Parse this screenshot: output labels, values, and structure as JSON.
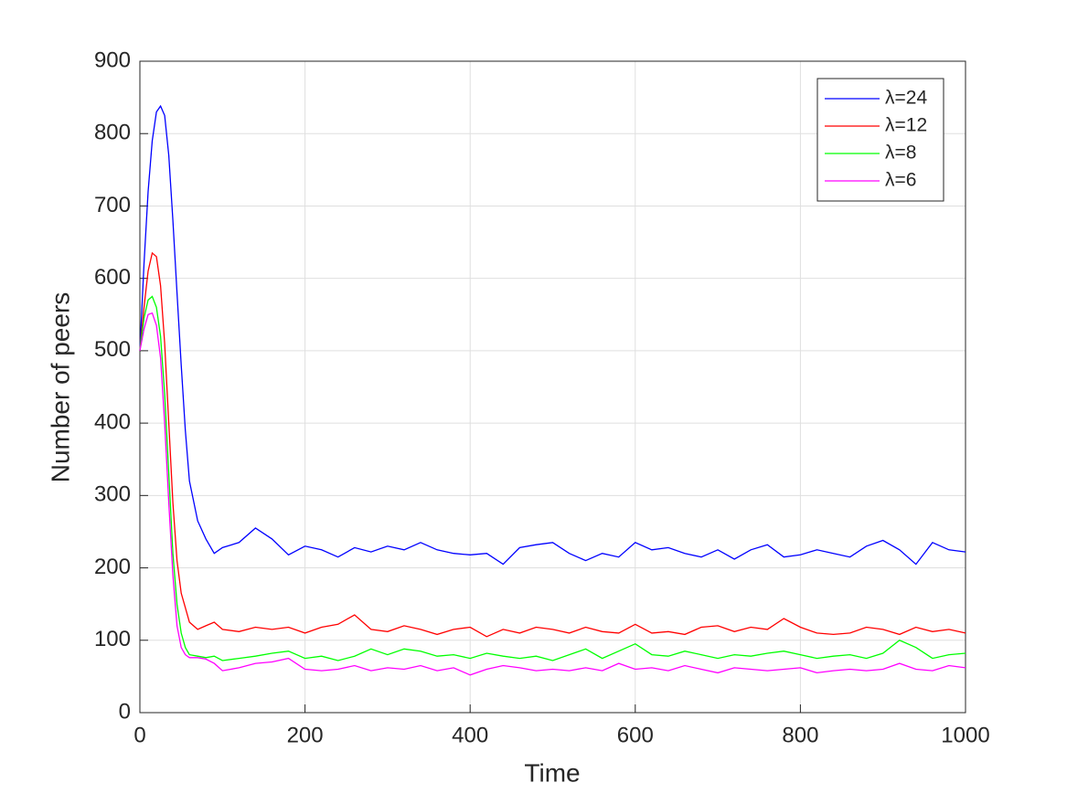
{
  "chart_data": {
    "type": "line",
    "xlabel": "Time",
    "ylabel": "Number of peers",
    "x": [
      0,
      5,
      10,
      15,
      20,
      25,
      30,
      35,
      40,
      45,
      50,
      55,
      60,
      70,
      80,
      90,
      100,
      120,
      140,
      160,
      180,
      200,
      220,
      240,
      260,
      280,
      300,
      320,
      340,
      360,
      380,
      400,
      420,
      440,
      460,
      480,
      500,
      520,
      540,
      560,
      580,
      600,
      620,
      640,
      660,
      680,
      700,
      720,
      740,
      760,
      780,
      800,
      820,
      840,
      860,
      880,
      900,
      920,
      940,
      960,
      980,
      1000
    ],
    "series": [
      {
        "name": "λ=24",
        "color": "#0000ff",
        "values": [
          500,
          620,
          720,
          790,
          830,
          838,
          825,
          770,
          680,
          580,
          480,
          390,
          320,
          265,
          240,
          220,
          228,
          235,
          255,
          240,
          218,
          230,
          225,
          215,
          228,
          222,
          230,
          225,
          235,
          225,
          220,
          218,
          220,
          205,
          228,
          232,
          235,
          220,
          210,
          220,
          215,
          235,
          225,
          228,
          220,
          215,
          225,
          212,
          225,
          232,
          215,
          218,
          225,
          220,
          215,
          230,
          238,
          225,
          205,
          235,
          225,
          222
        ]
      },
      {
        "name": "λ=12",
        "color": "#ff0000",
        "values": [
          500,
          560,
          610,
          635,
          630,
          590,
          510,
          400,
          290,
          210,
          165,
          145,
          125,
          115,
          120,
          125,
          115,
          112,
          118,
          115,
          118,
          110,
          118,
          122,
          135,
          115,
          112,
          120,
          115,
          108,
          115,
          118,
          105,
          115,
          110,
          118,
          115,
          110,
          118,
          112,
          110,
          122,
          110,
          112,
          108,
          118,
          120,
          112,
          118,
          115,
          130,
          118,
          110,
          108,
          110,
          118,
          115,
          108,
          118,
          112,
          115,
          110
        ]
      },
      {
        "name": "λ=8",
        "color": "#00ff00",
        "values": [
          500,
          545,
          570,
          575,
          560,
          520,
          440,
          330,
          220,
          150,
          110,
          90,
          80,
          78,
          76,
          78,
          72,
          75,
          78,
          82,
          85,
          75,
          78,
          72,
          78,
          88,
          80,
          88,
          85,
          78,
          80,
          75,
          82,
          78,
          75,
          78,
          72,
          80,
          88,
          75,
          85,
          95,
          80,
          78,
          85,
          80,
          75,
          80,
          78,
          82,
          85,
          80,
          75,
          78,
          80,
          75,
          82,
          100,
          90,
          75,
          80,
          82
        ]
      },
      {
        "name": "λ=6",
        "color": "#ff00ff",
        "values": [
          500,
          530,
          550,
          552,
          535,
          490,
          400,
          290,
          190,
          120,
          90,
          80,
          76,
          76,
          74,
          68,
          58,
          62,
          68,
          70,
          75,
          60,
          58,
          60,
          65,
          58,
          62,
          60,
          65,
          58,
          62,
          52,
          60,
          65,
          62,
          58,
          60,
          58,
          62,
          58,
          68,
          60,
          62,
          58,
          65,
          60,
          55,
          62,
          60,
          58,
          60,
          62,
          55,
          58,
          60,
          58,
          60,
          68,
          60,
          58,
          65,
          62
        ]
      }
    ],
    "xlim": [
      0,
      1000
    ],
    "xticks": [
      0,
      200,
      400,
      600,
      800,
      1000
    ],
    "ylim": [
      0,
      900
    ],
    "yticks": [
      0,
      100,
      200,
      300,
      400,
      500,
      600,
      700,
      800,
      900
    ],
    "grid": true,
    "legend": "upper-right"
  }
}
